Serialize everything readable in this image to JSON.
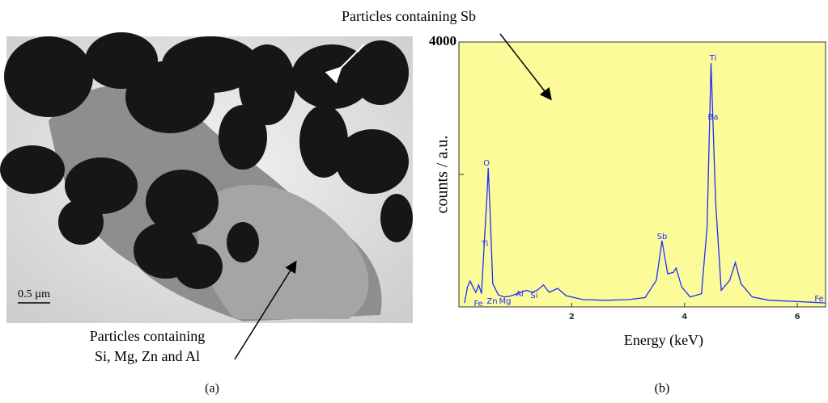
{
  "image_panel": {
    "scale_bar": "0.5 µm",
    "annotation": [
      "Particles containing",
      "Si, Mg, Zn and Al"
    ],
    "label": "(a)"
  },
  "spectrum_annotation": "Particles containing Sb",
  "chart_data": {
    "type": "line",
    "panel_label": "(b)",
    "ylabel": "counts / a.u.",
    "xlabel": "Energy (keV)",
    "x": [
      0.1,
      0.15,
      0.2,
      0.25,
      0.3,
      0.35,
      0.4,
      0.45,
      0.5,
      0.52,
      0.55,
      0.6,
      0.7,
      0.8,
      0.9,
      1.0,
      1.1,
      1.2,
      1.3,
      1.4,
      1.5,
      1.6,
      1.75,
      1.9,
      2.2,
      2.6,
      3.0,
      3.3,
      3.5,
      3.6,
      3.7,
      3.8,
      3.85,
      3.95,
      4.1,
      4.3,
      4.4,
      4.47,
      4.55,
      4.65,
      4.8,
      4.9,
      5.0,
      5.2,
      5.5,
      6.0,
      6.5
    ],
    "series": [
      {
        "color": "#1f2cff",
        "values": [
          60,
          300,
          390,
          300,
          220,
          330,
          200,
          980,
          1700,
          2100,
          1500,
          350,
          180,
          150,
          160,
          190,
          220,
          250,
          220,
          260,
          330,
          220,
          280,
          170,
          110,
          100,
          110,
          140,
          400,
          1000,
          500,
          520,
          585,
          300,
          150,
          200,
          1200,
          3680,
          1600,
          250,
          400,
          670,
          350,
          150,
          100,
          80,
          60
        ]
      }
    ],
    "xlim": [
      0,
      6.5
    ],
    "ylim": [
      0,
      4000
    ],
    "xticks": [
      2,
      4,
      6
    ],
    "yticks": [
      {
        "value": 2000,
        "label": null
      },
      4000
    ],
    "peak_labels": [
      "Ti",
      "O",
      "Fe",
      "Zn",
      "Mg",
      "Al",
      "Si",
      "Sb",
      "Ti",
      "Ba",
      "Fe"
    ],
    "plot_background": "#fbfb9a",
    "grid": false
  }
}
